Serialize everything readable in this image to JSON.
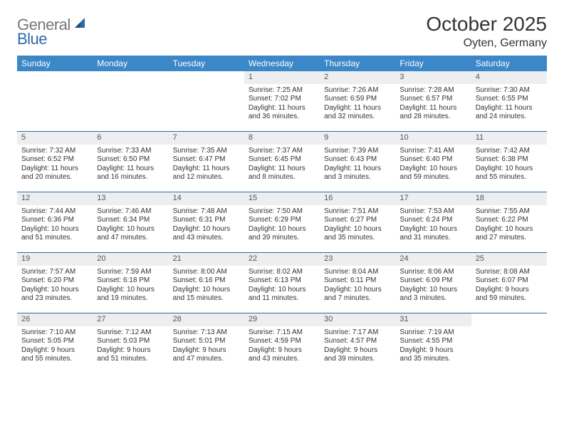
{
  "brand": {
    "general": "General",
    "blue": "Blue"
  },
  "title": "October 2025",
  "location": "Oyten, Germany",
  "colors": {
    "header_bg": "#3b87c8",
    "header_text": "#ffffff",
    "rule": "#2d6aa8",
    "daynum_bg": "#eceef0",
    "text": "#333333",
    "logo_gray": "#777777",
    "logo_blue": "#2d6aa8"
  },
  "dayNames": [
    "Sunday",
    "Monday",
    "Tuesday",
    "Wednesday",
    "Thursday",
    "Friday",
    "Saturday"
  ],
  "weeks": [
    [
      {
        "n": "",
        "sr": "",
        "ss": "",
        "dl": ""
      },
      {
        "n": "",
        "sr": "",
        "ss": "",
        "dl": ""
      },
      {
        "n": "",
        "sr": "",
        "ss": "",
        "dl": ""
      },
      {
        "n": "1",
        "sr": "Sunrise: 7:25 AM",
        "ss": "Sunset: 7:02 PM",
        "dl": "Daylight: 11 hours and 36 minutes."
      },
      {
        "n": "2",
        "sr": "Sunrise: 7:26 AM",
        "ss": "Sunset: 6:59 PM",
        "dl": "Daylight: 11 hours and 32 minutes."
      },
      {
        "n": "3",
        "sr": "Sunrise: 7:28 AM",
        "ss": "Sunset: 6:57 PM",
        "dl": "Daylight: 11 hours and 28 minutes."
      },
      {
        "n": "4",
        "sr": "Sunrise: 7:30 AM",
        "ss": "Sunset: 6:55 PM",
        "dl": "Daylight: 11 hours and 24 minutes."
      }
    ],
    [
      {
        "n": "5",
        "sr": "Sunrise: 7:32 AM",
        "ss": "Sunset: 6:52 PM",
        "dl": "Daylight: 11 hours and 20 minutes."
      },
      {
        "n": "6",
        "sr": "Sunrise: 7:33 AM",
        "ss": "Sunset: 6:50 PM",
        "dl": "Daylight: 11 hours and 16 minutes."
      },
      {
        "n": "7",
        "sr": "Sunrise: 7:35 AM",
        "ss": "Sunset: 6:47 PM",
        "dl": "Daylight: 11 hours and 12 minutes."
      },
      {
        "n": "8",
        "sr": "Sunrise: 7:37 AM",
        "ss": "Sunset: 6:45 PM",
        "dl": "Daylight: 11 hours and 8 minutes."
      },
      {
        "n": "9",
        "sr": "Sunrise: 7:39 AM",
        "ss": "Sunset: 6:43 PM",
        "dl": "Daylight: 11 hours and 3 minutes."
      },
      {
        "n": "10",
        "sr": "Sunrise: 7:41 AM",
        "ss": "Sunset: 6:40 PM",
        "dl": "Daylight: 10 hours and 59 minutes."
      },
      {
        "n": "11",
        "sr": "Sunrise: 7:42 AM",
        "ss": "Sunset: 6:38 PM",
        "dl": "Daylight: 10 hours and 55 minutes."
      }
    ],
    [
      {
        "n": "12",
        "sr": "Sunrise: 7:44 AM",
        "ss": "Sunset: 6:36 PM",
        "dl": "Daylight: 10 hours and 51 minutes."
      },
      {
        "n": "13",
        "sr": "Sunrise: 7:46 AM",
        "ss": "Sunset: 6:34 PM",
        "dl": "Daylight: 10 hours and 47 minutes."
      },
      {
        "n": "14",
        "sr": "Sunrise: 7:48 AM",
        "ss": "Sunset: 6:31 PM",
        "dl": "Daylight: 10 hours and 43 minutes."
      },
      {
        "n": "15",
        "sr": "Sunrise: 7:50 AM",
        "ss": "Sunset: 6:29 PM",
        "dl": "Daylight: 10 hours and 39 minutes."
      },
      {
        "n": "16",
        "sr": "Sunrise: 7:51 AM",
        "ss": "Sunset: 6:27 PM",
        "dl": "Daylight: 10 hours and 35 minutes."
      },
      {
        "n": "17",
        "sr": "Sunrise: 7:53 AM",
        "ss": "Sunset: 6:24 PM",
        "dl": "Daylight: 10 hours and 31 minutes."
      },
      {
        "n": "18",
        "sr": "Sunrise: 7:55 AM",
        "ss": "Sunset: 6:22 PM",
        "dl": "Daylight: 10 hours and 27 minutes."
      }
    ],
    [
      {
        "n": "19",
        "sr": "Sunrise: 7:57 AM",
        "ss": "Sunset: 6:20 PM",
        "dl": "Daylight: 10 hours and 23 minutes."
      },
      {
        "n": "20",
        "sr": "Sunrise: 7:59 AM",
        "ss": "Sunset: 6:18 PM",
        "dl": "Daylight: 10 hours and 19 minutes."
      },
      {
        "n": "21",
        "sr": "Sunrise: 8:00 AM",
        "ss": "Sunset: 6:16 PM",
        "dl": "Daylight: 10 hours and 15 minutes."
      },
      {
        "n": "22",
        "sr": "Sunrise: 8:02 AM",
        "ss": "Sunset: 6:13 PM",
        "dl": "Daylight: 10 hours and 11 minutes."
      },
      {
        "n": "23",
        "sr": "Sunrise: 8:04 AM",
        "ss": "Sunset: 6:11 PM",
        "dl": "Daylight: 10 hours and 7 minutes."
      },
      {
        "n": "24",
        "sr": "Sunrise: 8:06 AM",
        "ss": "Sunset: 6:09 PM",
        "dl": "Daylight: 10 hours and 3 minutes."
      },
      {
        "n": "25",
        "sr": "Sunrise: 8:08 AM",
        "ss": "Sunset: 6:07 PM",
        "dl": "Daylight: 9 hours and 59 minutes."
      }
    ],
    [
      {
        "n": "26",
        "sr": "Sunrise: 7:10 AM",
        "ss": "Sunset: 5:05 PM",
        "dl": "Daylight: 9 hours and 55 minutes."
      },
      {
        "n": "27",
        "sr": "Sunrise: 7:12 AM",
        "ss": "Sunset: 5:03 PM",
        "dl": "Daylight: 9 hours and 51 minutes."
      },
      {
        "n": "28",
        "sr": "Sunrise: 7:13 AM",
        "ss": "Sunset: 5:01 PM",
        "dl": "Daylight: 9 hours and 47 minutes."
      },
      {
        "n": "29",
        "sr": "Sunrise: 7:15 AM",
        "ss": "Sunset: 4:59 PM",
        "dl": "Daylight: 9 hours and 43 minutes."
      },
      {
        "n": "30",
        "sr": "Sunrise: 7:17 AM",
        "ss": "Sunset: 4:57 PM",
        "dl": "Daylight: 9 hours and 39 minutes."
      },
      {
        "n": "31",
        "sr": "Sunrise: 7:19 AM",
        "ss": "Sunset: 4:55 PM",
        "dl": "Daylight: 9 hours and 35 minutes."
      },
      {
        "n": "",
        "sr": "",
        "ss": "",
        "dl": ""
      }
    ]
  ]
}
